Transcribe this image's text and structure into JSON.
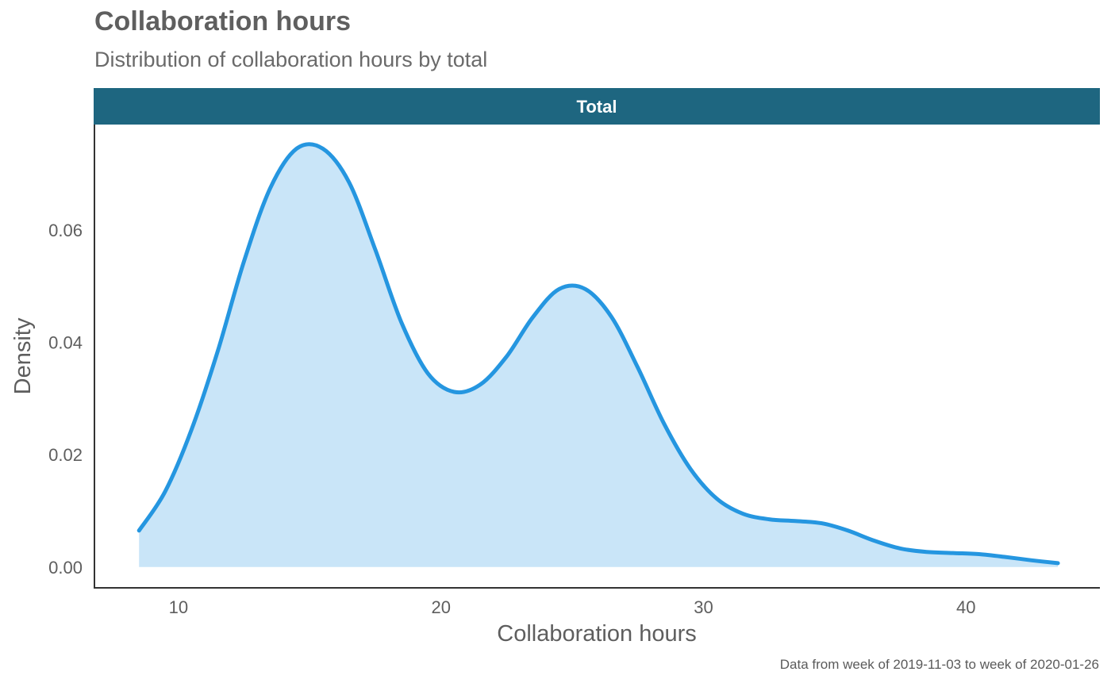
{
  "chart_data": {
    "type": "area",
    "title": "Collaboration hours",
    "subtitle": "Distribution of collaboration hours by total",
    "facet_label": "Total",
    "xlabel": "Collaboration hours",
    "ylabel": "Density",
    "caption": "Data from week of 2019-11-03 to week of 2020-01-26",
    "xlim": [
      6.8,
      45.1
    ],
    "ylim": [
      -0.0037,
      0.0788
    ],
    "x_ticks": [
      10,
      20,
      30,
      40
    ],
    "x_tick_labels": [
      "10",
      "20",
      "30",
      "40"
    ],
    "y_ticks": [
      0,
      0.02,
      0.04,
      0.06
    ],
    "y_tick_labels": [
      "0.00",
      "0.02",
      "0.04",
      "0.06"
    ],
    "grid": false,
    "line_color": "#2596e0",
    "fill_color": "#c9e5f8",
    "strip_color": "#1e6680",
    "series": [
      {
        "x": [
          8.5,
          9.5,
          10.5,
          11.5,
          12.5,
          13.5,
          14.5,
          15.5,
          16.5,
          17.5,
          18.5,
          19.5,
          20.5,
          21.5,
          22.5,
          23.5,
          24.5,
          25.5,
          26.5,
          27.5,
          28.5,
          29.5,
          30.5,
          31.5,
          32.5,
          33.5,
          34.5,
          35.5,
          36.5,
          37.5,
          38.5,
          39.5,
          40.5,
          41.5,
          42.5,
          43.5
        ],
        "values": [
          0.0065,
          0.0135,
          0.0245,
          0.0385,
          0.0545,
          0.0675,
          0.0745,
          0.0745,
          0.0685,
          0.0565,
          0.0435,
          0.0345,
          0.0312,
          0.0325,
          0.0375,
          0.0445,
          0.0495,
          0.0495,
          0.0445,
          0.0355,
          0.0255,
          0.0175,
          0.0122,
          0.0095,
          0.0085,
          0.0082,
          0.0078,
          0.0065,
          0.0047,
          0.0033,
          0.0027,
          0.0025,
          0.0023,
          0.0018,
          0.0012,
          0.0007
        ]
      }
    ]
  }
}
